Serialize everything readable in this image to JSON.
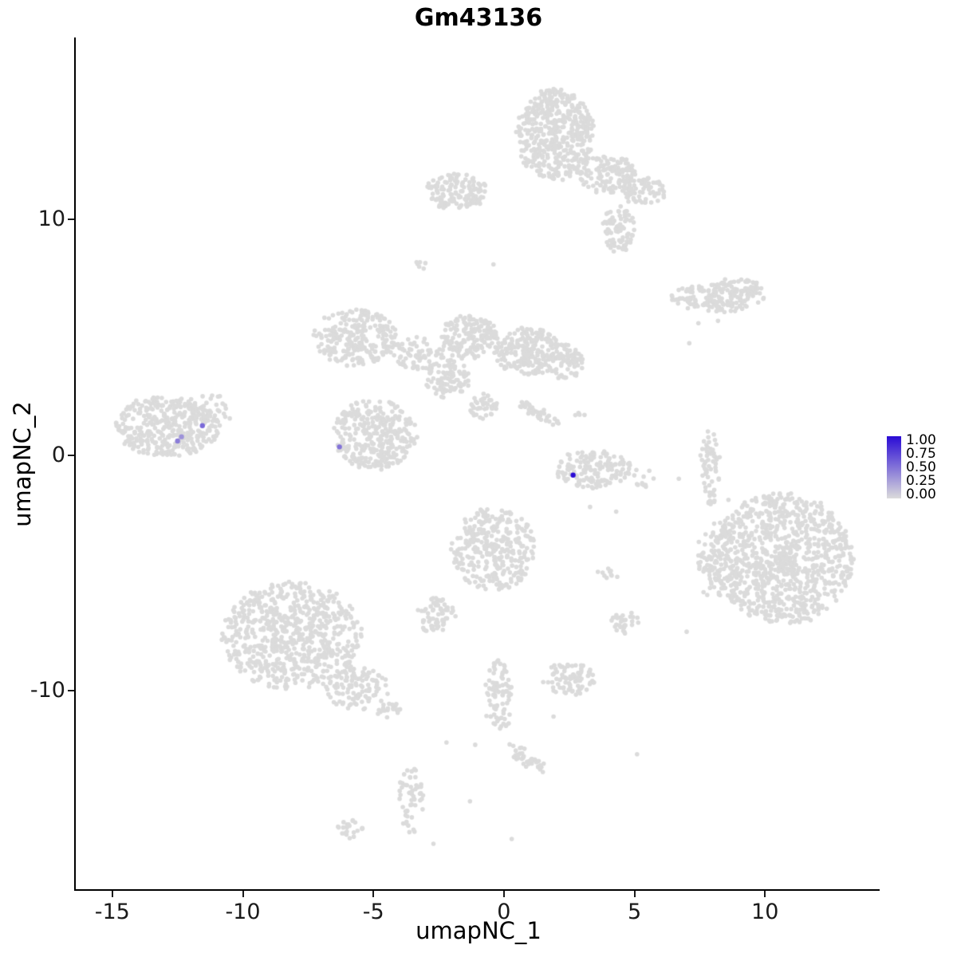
{
  "chart_data": {
    "type": "scatter",
    "title": "Gm43136",
    "xlabel": "umapNC_1",
    "ylabel": "umapNC_2",
    "xlim": [
      -16.4,
      14.3
    ],
    "ylim": [
      -18.5,
      17.7
    ],
    "xticks": [
      -15,
      -10,
      -5,
      0,
      5,
      10
    ],
    "yticks": [
      -10,
      0,
      10
    ],
    "grid": false,
    "background": "#FFFFFF",
    "point_color": "#DBDBDB",
    "colormap": {
      "low": "#DBDBDB",
      "high": "#2A0BD5"
    },
    "legend": {
      "position": "right",
      "labels": [
        "1.00",
        "0.75",
        "0.50",
        "0.25",
        "0.00"
      ]
    },
    "clusters": [
      {
        "x": 1.95,
        "y": 13.6,
        "rx": 1.5,
        "ry": 1.95,
        "n": 480
      },
      {
        "x": 4.0,
        "y": 11.9,
        "rx": 1.1,
        "ry": 0.8,
        "n": 130
      },
      {
        "x": 5.3,
        "y": 11.2,
        "rx": 0.9,
        "ry": 0.6,
        "n": 70
      },
      {
        "x": 4.4,
        "y": 9.6,
        "rx": 0.6,
        "ry": 1.0,
        "n": 85
      },
      {
        "x": -1.8,
        "y": 11.2,
        "rx": 1.25,
        "ry": 0.8,
        "n": 140
      },
      {
        "x": -3.2,
        "y": 8.15,
        "rx": 0.3,
        "ry": 0.25,
        "n": 6
      },
      {
        "x": 8.2,
        "y": 6.7,
        "rx": 1.8,
        "ry": 0.6,
        "n": 160
      },
      {
        "x": 9.0,
        "y": 7.15,
        "rx": 0.9,
        "ry": 0.35,
        "n": 45
      },
      {
        "x": -5.7,
        "y": 5.0,
        "rx": 1.6,
        "ry": 1.2,
        "n": 250
      },
      {
        "x": -3.3,
        "y": 4.3,
        "rx": 1.0,
        "ry": 0.7,
        "n": 65
      },
      {
        "x": -1.3,
        "y": 5.0,
        "rx": 1.1,
        "ry": 0.95,
        "n": 170
      },
      {
        "x": 0.9,
        "y": 4.4,
        "rx": 1.3,
        "ry": 1.0,
        "n": 210
      },
      {
        "x": 2.3,
        "y": 4.0,
        "rx": 0.8,
        "ry": 0.8,
        "n": 85
      },
      {
        "x": -2.2,
        "y": 3.3,
        "rx": 0.85,
        "ry": 0.85,
        "n": 105
      },
      {
        "x": -0.8,
        "y": 2.0,
        "rx": 0.55,
        "ry": 0.6,
        "n": 40
      },
      {
        "x": 1.3,
        "y": 1.8,
        "rx": 0.95,
        "ry": 0.22,
        "n": 40,
        "rot": -30
      },
      {
        "x": -12.9,
        "y": 1.2,
        "rx": 2.0,
        "ry": 1.3,
        "n": 380
      },
      {
        "x": -11.2,
        "y": 1.9,
        "rx": 0.8,
        "ry": 0.7,
        "n": 35
      },
      {
        "x": -4.95,
        "y": 0.85,
        "rx": 1.6,
        "ry": 1.5,
        "n": 330
      },
      {
        "x": 2.9,
        "y": 1.75,
        "rx": 0.2,
        "ry": 0.15,
        "n": 5
      },
      {
        "x": 3.4,
        "y": -0.6,
        "rx": 1.45,
        "ry": 0.8,
        "n": 150
      },
      {
        "x": 5.4,
        "y": -1.0,
        "rx": 0.6,
        "ry": 0.4,
        "n": 12
      },
      {
        "x": 7.9,
        "y": -0.5,
        "rx": 0.35,
        "ry": 1.6,
        "n": 65
      },
      {
        "x": 10.7,
        "y": -4.4,
        "rx": 2.7,
        "ry": 2.8,
        "n": 950
      },
      {
        "x": 8.1,
        "y": -4.5,
        "rx": 0.7,
        "ry": 1.7,
        "n": 85
      },
      {
        "x": -0.4,
        "y": -4.0,
        "rx": 1.6,
        "ry": 1.8,
        "n": 320
      },
      {
        "x": -2.55,
        "y": -6.8,
        "rx": 0.8,
        "ry": 0.8,
        "n": 65
      },
      {
        "x": 3.9,
        "y": -5.0,
        "rx": 0.5,
        "ry": 0.3,
        "n": 10
      },
      {
        "x": -8.1,
        "y": -7.7,
        "rx": 2.7,
        "ry": 2.3,
        "n": 680
      },
      {
        "x": -5.6,
        "y": -9.9,
        "rx": 1.2,
        "ry": 0.9,
        "n": 110
      },
      {
        "x": -4.4,
        "y": -10.9,
        "rx": 0.5,
        "ry": 0.4,
        "n": 22
      },
      {
        "x": -0.2,
        "y": -10.3,
        "rx": 0.5,
        "ry": 1.6,
        "n": 85
      },
      {
        "x": 2.5,
        "y": -9.5,
        "rx": 1.0,
        "ry": 0.7,
        "n": 85
      },
      {
        "x": 4.6,
        "y": -7.1,
        "rx": 0.55,
        "ry": 0.45,
        "n": 32
      },
      {
        "x": 0.9,
        "y": -12.9,
        "rx": 0.9,
        "ry": 0.3,
        "n": 40,
        "rot": -40
      },
      {
        "x": -3.56,
        "y": -14.6,
        "rx": 0.5,
        "ry": 1.5,
        "n": 55
      },
      {
        "x": -5.85,
        "y": -15.9,
        "rx": 0.5,
        "ry": 0.4,
        "n": 22
      }
    ],
    "singles": [
      [
        7.45,
        5.6
      ],
      [
        8.2,
        5.7
      ],
      [
        7.1,
        4.75
      ],
      [
        6.7,
        -1.0
      ],
      [
        8.6,
        -1.9
      ],
      [
        7.0,
        -7.5
      ],
      [
        5.1,
        -12.7
      ],
      [
        1.9,
        -11.1
      ],
      [
        -1.1,
        -12.3
      ],
      [
        -2.2,
        -12.2
      ],
      [
        -1.3,
        -14.7
      ],
      [
        0.3,
        -16.3
      ],
      [
        -2.7,
        -16.5
      ],
      [
        3.3,
        -2.2
      ],
      [
        4.3,
        -2.4
      ],
      [
        -0.4,
        8.1
      ]
    ],
    "highlights": [
      {
        "x": -12.5,
        "y": 0.6,
        "value": 0.45
      },
      {
        "x": -12.35,
        "y": 0.78,
        "value": 0.35
      },
      {
        "x": -11.55,
        "y": 1.25,
        "value": 0.55
      },
      {
        "x": -6.3,
        "y": 0.35,
        "value": 0.5
      },
      {
        "x": 2.65,
        "y": -0.85,
        "value": 1.0
      }
    ]
  }
}
